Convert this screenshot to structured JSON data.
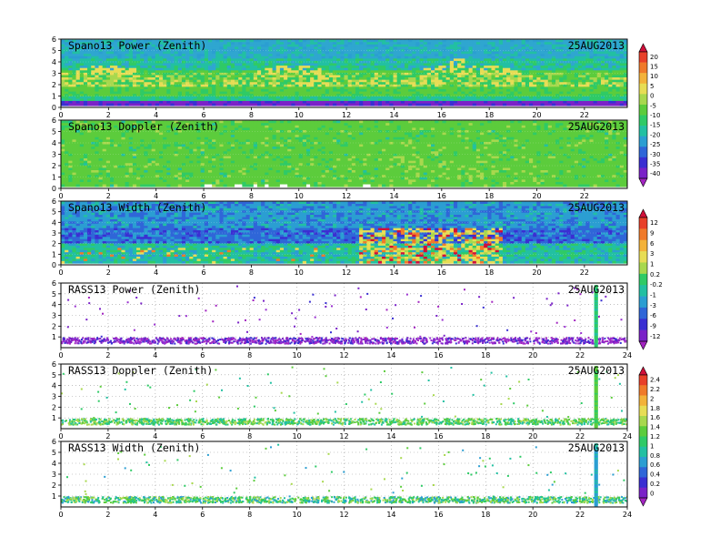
{
  "figure": {
    "colorbar_1": {
      "labels": [
        "20",
        "15",
        "10",
        "5",
        "0",
        "-5",
        "-10",
        "-15",
        "-20",
        "-25",
        "-30",
        "-35",
        "-40"
      ],
      "colors": [
        "#d0103a",
        "#e8402a",
        "#f07a2a",
        "#f3b23a",
        "#e7dd55",
        "#a8d84e",
        "#5ccc3c",
        "#2fca66",
        "#22c0a2",
        "#2b9ed2",
        "#2f66d8",
        "#3a2fd2",
        "#7a22c8",
        "#a224c0"
      ]
    },
    "colorbar_2": {
      "labels": [
        "12",
        "9",
        "6",
        "3",
        "1",
        "0.2",
        "-0.2",
        "-1",
        "-3",
        "-6",
        "-9",
        "-12"
      ],
      "colors": [
        "#d0103a",
        "#e8402a",
        "#f07a2a",
        "#f3b23a",
        "#e7dd55",
        "#a8d84e",
        "#2fca66",
        "#22c0a2",
        "#2b9ed2",
        "#2f66d8",
        "#3a2fd2",
        "#7a22c8",
        "#a224c0"
      ]
    },
    "colorbar_3": {
      "labels": [
        "2.4",
        "2.2",
        "2",
        "1.8",
        "1.6",
        "1.4",
        "1.2",
        "1",
        "0.8",
        "0.6",
        "0.4",
        "0.2",
        "0"
      ],
      "colors": [
        "#d0103a",
        "#e8402a",
        "#f07a2a",
        "#f3b23a",
        "#e7dd55",
        "#a8d84e",
        "#5ccc3c",
        "#2fca66",
        "#22c0a2",
        "#2b9ed2",
        "#2f66d8",
        "#3a2fd2",
        "#7a22c8",
        "#a224c0"
      ]
    }
  },
  "chart_data": [
    {
      "type": "heatmap",
      "title": "Spano13 Power (Zenith)",
      "date": "25AUG2013",
      "xlim": [
        0,
        23.8
      ],
      "ylim": [
        0,
        6
      ],
      "xticks": [
        "0",
        "2",
        "4",
        "6",
        "8",
        "10",
        "12",
        "14",
        "16",
        "18",
        "20",
        "22"
      ],
      "yticks": [
        "0",
        "1",
        "2",
        "3",
        "4",
        "5",
        "6"
      ],
      "colorbar": "colorbar_1",
      "kind": "power"
    },
    {
      "type": "heatmap",
      "title": "Spano13 Doppler (Zenith)",
      "date": "25AUG2013",
      "xlim": [
        0,
        23.8
      ],
      "ylim": [
        0,
        6
      ],
      "xticks": [
        "0",
        "2",
        "4",
        "6",
        "8",
        "10",
        "12",
        "14",
        "16",
        "18",
        "20",
        "22"
      ],
      "yticks": [
        "0",
        "1",
        "2",
        "3",
        "4",
        "5",
        "6"
      ],
      "colorbar": "colorbar_1",
      "kind": "doppler"
    },
    {
      "type": "heatmap",
      "title": "Spano13 Width (Zenith)",
      "date": "25AUG2013",
      "xlim": [
        0,
        23.8
      ],
      "ylim": [
        0,
        6
      ],
      "xticks": [
        "0",
        "2",
        "4",
        "6",
        "8",
        "10",
        "12",
        "14",
        "16",
        "18",
        "20",
        "22"
      ],
      "yticks": [
        "0",
        "1",
        "2",
        "3",
        "4",
        "5",
        "6"
      ],
      "colorbar": "colorbar_2",
      "kind": "width"
    },
    {
      "type": "scatter",
      "title": "RASS13 Power (Zenith)",
      "date": "25AUG2013",
      "xlim": [
        0,
        24
      ],
      "ylim": [
        0,
        6
      ],
      "xticks": [
        "0",
        "2",
        "4",
        "6",
        "8",
        "10",
        "12",
        "14",
        "16",
        "18",
        "20",
        "22",
        "24"
      ],
      "yticks": [
        "1",
        "2",
        "3",
        "4",
        "5",
        "6"
      ],
      "colorbar": "colorbar_2",
      "kind": "rpower"
    },
    {
      "type": "scatter",
      "title": "RASS13 Doppler (Zenith)",
      "date": "25AUG2013",
      "xlim": [
        0,
        24
      ],
      "ylim": [
        0,
        6
      ],
      "xticks": [
        "0",
        "2",
        "4",
        "6",
        "8",
        "10",
        "12",
        "14",
        "16",
        "18",
        "20",
        "22",
        "24"
      ],
      "yticks": [
        "1",
        "2",
        "3",
        "4",
        "5",
        "6"
      ],
      "colorbar": "colorbar_3",
      "kind": "rdoppler"
    },
    {
      "type": "scatter",
      "title": "RASS13 Width (Zenith)",
      "date": "25AUG2013",
      "xlim": [
        0,
        24
      ],
      "ylim": [
        0,
        6
      ],
      "xticks": [
        "0",
        "2",
        "4",
        "6",
        "8",
        "10",
        "12",
        "14",
        "16",
        "18",
        "20",
        "22",
        "24"
      ],
      "yticks": [
        "1",
        "2",
        "3",
        "4",
        "5",
        "6"
      ],
      "colorbar": "colorbar_3",
      "kind": "rwidth"
    }
  ]
}
